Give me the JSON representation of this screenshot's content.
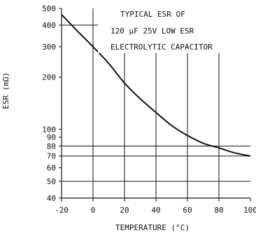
{
  "chart_data": {
    "type": "line",
    "title": "",
    "xlabel": "TEMPERATURE (°C)",
    "ylabel": "ESR (mΩ)",
    "x_scale": "linear",
    "y_scale": "log",
    "xlim": [
      -20,
      100
    ],
    "ylim": [
      40,
      500
    ],
    "x_ticks": [
      -20,
      0,
      20,
      40,
      60,
      80,
      100
    ],
    "x_tick_labels": [
      "-20",
      "0",
      "20",
      "40",
      "60",
      "80",
      "100"
    ],
    "y_ticks": [
      40,
      50,
      60,
      70,
      80,
      90,
      100,
      200,
      300,
      400,
      500
    ],
    "y_tick_labels": [
      "40",
      "50",
      "60",
      "70",
      "80",
      "90",
      "100",
      "200",
      "300",
      "400",
      "500"
    ],
    "grid": {
      "vertical_at_x": [
        0,
        20,
        40,
        60,
        80
      ],
      "horizontal_at_y": [
        50,
        70,
        80,
        400
      ]
    },
    "annotation_lines": [
      "TYPICAL ESR OF",
      "120 µF 25V LOW ESR",
      "ELECTROLYTIC CAPACITOR"
    ],
    "series": [
      {
        "x": [
          -20,
          -10,
          0,
          10,
          20,
          30,
          40,
          50,
          60,
          70,
          80,
          90,
          100
        ],
        "y": [
          460,
          370,
          300,
          240,
          185,
          150,
          125,
          105,
          92,
          83,
          78,
          73,
          70
        ]
      }
    ],
    "colors": {
      "line": "#111111",
      "grid": "#111111",
      "background": "#ffffff"
    }
  }
}
